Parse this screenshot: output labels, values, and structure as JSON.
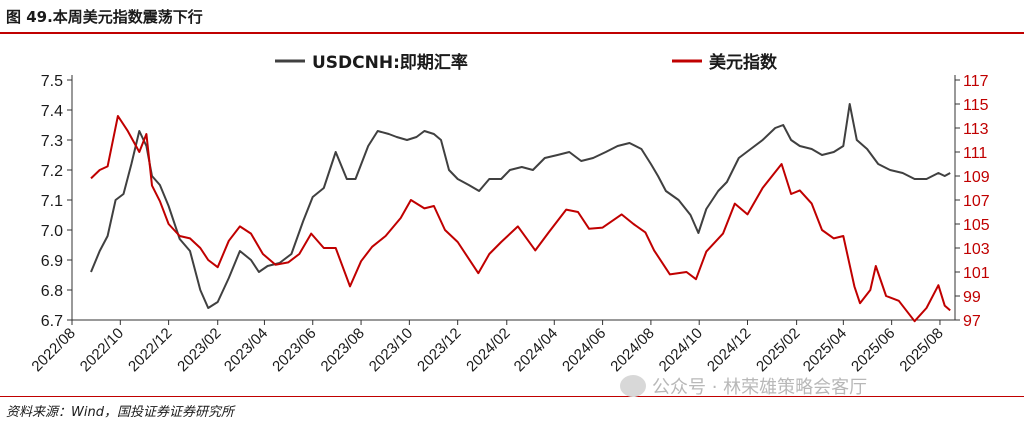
{
  "title": "图 49.本周美元指数震荡下行",
  "source": "资料来源：Wind，国投证券证券研究所",
  "watermark": "公众号 · 林荣雄策略会客厅",
  "chart_data": {
    "type": "line",
    "title": "本周美元指数震荡下行",
    "legend_position": "top",
    "grid": false,
    "x_ticks": [
      "2022/08",
      "2022/10",
      "2022/12",
      "2023/02",
      "2023/04",
      "2023/06",
      "2023/08",
      "2023/10",
      "2023/12",
      "2024/02",
      "2024/04",
      "2024/06",
      "2024/08",
      "2024/10",
      "2024/12",
      "2025/02",
      "2025/04",
      "2025/06",
      "2025/08"
    ],
    "left_axis": {
      "ylim": [
        6.7,
        7.5
      ],
      "ticks": [
        "6.7",
        "6.8",
        "6.9",
        "7.0",
        "7.1",
        "7.2",
        "7.3",
        "7.4",
        "7.5"
      ]
    },
    "right_axis": {
      "ylim": [
        97,
        117
      ],
      "ticks": [
        "97",
        "99",
        "101",
        "103",
        "105",
        "107",
        "109",
        "111",
        "113",
        "115",
        "117"
      ]
    },
    "series": [
      {
        "name": "USDCNH:即期汇率",
        "axis": "left",
        "color": "#404040",
        "points": [
          [
            "2022/08/25",
            6.86
          ],
          [
            "2022/09/05",
            6.93
          ],
          [
            "2022/09/15",
            6.98
          ],
          [
            "2022/09/25",
            7.1
          ],
          [
            "2022/10/05",
            7.12
          ],
          [
            "2022/10/15",
            7.22
          ],
          [
            "2022/10/25",
            7.33
          ],
          [
            "2022/11/03",
            7.28
          ],
          [
            "2022/11/10",
            7.18
          ],
          [
            "2022/11/20",
            7.15
          ],
          [
            "2022/12/01",
            7.08
          ],
          [
            "2022/12/15",
            6.97
          ],
          [
            "2022/12/28",
            6.93
          ],
          [
            "2023/01/10",
            6.8
          ],
          [
            "2023/01/20",
            6.74
          ],
          [
            "2023/02/01",
            6.76
          ],
          [
            "2023/02/15",
            6.84
          ],
          [
            "2023/03/01",
            6.93
          ],
          [
            "2023/03/15",
            6.9
          ],
          [
            "2023/03/25",
            6.86
          ],
          [
            "2023/04/05",
            6.88
          ],
          [
            "2023/04/20",
            6.89
          ],
          [
            "2023/05/05",
            6.92
          ],
          [
            "2023/05/20",
            7.03
          ],
          [
            "2023/06/01",
            7.11
          ],
          [
            "2023/06/15",
            7.14
          ],
          [
            "2023/06/30",
            7.26
          ],
          [
            "2023/07/14",
            7.17
          ],
          [
            "2023/07/25",
            7.17
          ],
          [
            "2023/08/10",
            7.28
          ],
          [
            "2023/08/22",
            7.33
          ],
          [
            "2023/09/05",
            7.32
          ],
          [
            "2023/09/15",
            7.31
          ],
          [
            "2023/09/28",
            7.3
          ],
          [
            "2023/10/10",
            7.31
          ],
          [
            "2023/10/20",
            7.33
          ],
          [
            "2023/11/01",
            7.32
          ],
          [
            "2023/11/10",
            7.3
          ],
          [
            "2023/11/20",
            7.2
          ],
          [
            "2023/12/01",
            7.17
          ],
          [
            "2023/12/15",
            7.15
          ],
          [
            "2023/12/28",
            7.13
          ],
          [
            "2024/01/10",
            7.17
          ],
          [
            "2024/01/25",
            7.17
          ],
          [
            "2024/02/05",
            7.2
          ],
          [
            "2024/02/20",
            7.21
          ],
          [
            "2024/03/05",
            7.2
          ],
          [
            "2024/03/20",
            7.24
          ],
          [
            "2024/04/05",
            7.25
          ],
          [
            "2024/04/20",
            7.26
          ],
          [
            "2024/05/05",
            7.23
          ],
          [
            "2024/05/20",
            7.24
          ],
          [
            "2024/06/05",
            7.26
          ],
          [
            "2024/06/20",
            7.28
          ],
          [
            "2024/07/05",
            7.29
          ],
          [
            "2024/07/20",
            7.27
          ],
          [
            "2024/08/01",
            7.22
          ],
          [
            "2024/08/10",
            7.18
          ],
          [
            "2024/08/20",
            7.13
          ],
          [
            "2024/09/05",
            7.1
          ],
          [
            "2024/09/20",
            7.05
          ],
          [
            "2024/09/30",
            6.99
          ],
          [
            "2024/10/10",
            7.07
          ],
          [
            "2024/10/25",
            7.13
          ],
          [
            "2024/11/05",
            7.16
          ],
          [
            "2024/11/20",
            7.24
          ],
          [
            "2024/12/05",
            7.27
          ],
          [
            "2024/12/20",
            7.3
          ],
          [
            "2025/01/05",
            7.34
          ],
          [
            "2025/01/15",
            7.35
          ],
          [
            "2025/01/25",
            7.3
          ],
          [
            "2025/02/05",
            7.28
          ],
          [
            "2025/02/20",
            7.27
          ],
          [
            "2025/03/05",
            7.25
          ],
          [
            "2025/03/20",
            7.26
          ],
          [
            "2025/04/01",
            7.28
          ],
          [
            "2025/04/09",
            7.42
          ],
          [
            "2025/04/18",
            7.3
          ],
          [
            "2025/05/01",
            7.27
          ],
          [
            "2025/05/15",
            7.22
          ],
          [
            "2025/05/30",
            7.2
          ],
          [
            "2025/06/15",
            7.19
          ],
          [
            "2025/06/30",
            7.17
          ],
          [
            "2025/07/15",
            7.17
          ],
          [
            "2025/07/30",
            7.19
          ],
          [
            "2025/08/07",
            7.18
          ],
          [
            "2025/08/14",
            7.19
          ]
        ]
      },
      {
        "name": "美元指数",
        "axis": "right",
        "color": "#c00000",
        "points": [
          [
            "2022/08/25",
            108.8
          ],
          [
            "2022/09/05",
            109.5
          ],
          [
            "2022/09/15",
            109.8
          ],
          [
            "2022/09/28",
            114.0
          ],
          [
            "2022/10/10",
            112.8
          ],
          [
            "2022/10/25",
            111.0
          ],
          [
            "2022/11/03",
            112.5
          ],
          [
            "2022/11/10",
            108.2
          ],
          [
            "2022/11/20",
            106.9
          ],
          [
            "2022/12/01",
            105.0
          ],
          [
            "2022/12/15",
            104.0
          ],
          [
            "2022/12/28",
            103.8
          ],
          [
            "2023/01/10",
            103.0
          ],
          [
            "2023/01/20",
            102.0
          ],
          [
            "2023/02/01",
            101.4
          ],
          [
            "2023/02/15",
            103.6
          ],
          [
            "2023/03/01",
            104.8
          ],
          [
            "2023/03/15",
            104.2
          ],
          [
            "2023/03/30",
            102.5
          ],
          [
            "2023/04/15",
            101.6
          ],
          [
            "2023/05/01",
            101.8
          ],
          [
            "2023/05/15",
            102.5
          ],
          [
            "2023/05/30",
            104.2
          ],
          [
            "2023/06/15",
            103.0
          ],
          [
            "2023/06/30",
            103.0
          ],
          [
            "2023/07/18",
            99.8
          ],
          [
            "2023/08/01",
            101.9
          ],
          [
            "2023/08/15",
            103.1
          ],
          [
            "2023/09/01",
            104.0
          ],
          [
            "2023/09/20",
            105.5
          ],
          [
            "2023/10/03",
            107.0
          ],
          [
            "2023/10/20",
            106.3
          ],
          [
            "2023/11/01",
            106.5
          ],
          [
            "2023/11/15",
            104.5
          ],
          [
            "2023/12/01",
            103.5
          ],
          [
            "2023/12/27",
            100.9
          ],
          [
            "2024/01/10",
            102.5
          ],
          [
            "2024/01/25",
            103.5
          ],
          [
            "2024/02/15",
            104.8
          ],
          [
            "2024/03/08",
            102.8
          ],
          [
            "2024/03/25",
            104.3
          ],
          [
            "2024/04/16",
            106.2
          ],
          [
            "2024/05/01",
            106.0
          ],
          [
            "2024/05/15",
            104.6
          ],
          [
            "2024/06/01",
            104.7
          ],
          [
            "2024/06/25",
            105.8
          ],
          [
            "2024/07/10",
            105.0
          ],
          [
            "2024/07/25",
            104.3
          ],
          [
            "2024/08/05",
            102.8
          ],
          [
            "2024/08/25",
            100.8
          ],
          [
            "2024/09/15",
            101.0
          ],
          [
            "2024/09/27",
            100.4
          ],
          [
            "2024/10/10",
            102.7
          ],
          [
            "2024/10/31",
            104.2
          ],
          [
            "2024/11/15",
            106.7
          ],
          [
            "2024/12/01",
            105.8
          ],
          [
            "2024/12/20",
            108.0
          ],
          [
            "2025/01/13",
            110.0
          ],
          [
            "2025/01/25",
            107.5
          ],
          [
            "2025/02/05",
            107.8
          ],
          [
            "2025/02/20",
            106.7
          ],
          [
            "2025/03/05",
            104.5
          ],
          [
            "2025/03/20",
            103.8
          ],
          [
            "2025/04/01",
            104.0
          ],
          [
            "2025/04/15",
            99.8
          ],
          [
            "2025/04/22",
            98.4
          ],
          [
            "2025/05/05",
            99.5
          ],
          [
            "2025/05/12",
            101.5
          ],
          [
            "2025/05/25",
            99.0
          ],
          [
            "2025/06/10",
            98.6
          ],
          [
            "2025/06/30",
            96.9
          ],
          [
            "2025/07/15",
            98.0
          ],
          [
            "2025/07/30",
            99.9
          ],
          [
            "2025/08/07",
            98.2
          ],
          [
            "2025/08/14",
            97.8
          ]
        ]
      }
    ]
  }
}
